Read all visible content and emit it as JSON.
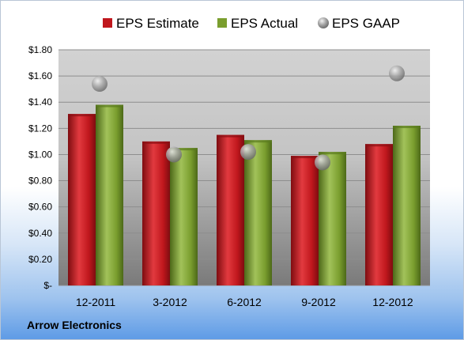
{
  "footer": {
    "company": "Arrow Electronics"
  },
  "colors": {
    "estimate": "#c0171d",
    "actual": "#7a9e2e",
    "gaap": "#9a9a9a"
  },
  "chart_data": {
    "type": "bar",
    "categories": [
      "12-2011",
      "3-2012",
      "6-2012",
      "9-2012",
      "12-2012"
    ],
    "series": [
      {
        "name": "EPS Estimate",
        "kind": "bar",
        "values": [
          1.31,
          1.1,
          1.15,
          0.99,
          1.08
        ]
      },
      {
        "name": "EPS Actual",
        "kind": "bar",
        "values": [
          1.38,
          1.05,
          1.11,
          1.02,
          1.22
        ]
      },
      {
        "name": "EPS GAAP",
        "kind": "marker",
        "values": [
          1.54,
          1.0,
          1.02,
          0.94,
          1.62
        ]
      }
    ],
    "ylim": [
      0,
      1.8
    ],
    "yticks": [
      0,
      0.2,
      0.4,
      0.6,
      0.8,
      1.0,
      1.2,
      1.4,
      1.6,
      1.8
    ],
    "ytick_labels": [
      "$-",
      "$0.20",
      "$0.40",
      "$0.60",
      "$0.80",
      "$1.00",
      "$1.20",
      "$1.40",
      "$1.60",
      "$1.80"
    ],
    "grid": true,
    "legend_position": "top"
  }
}
